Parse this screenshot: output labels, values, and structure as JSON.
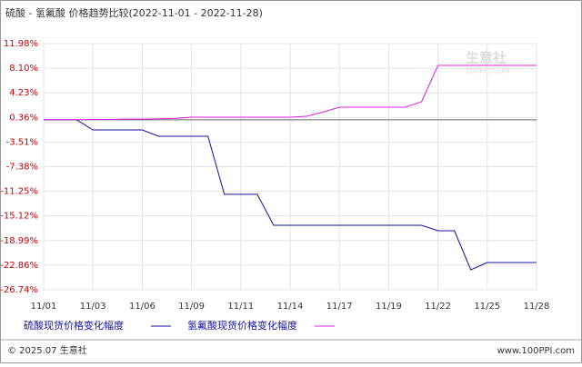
{
  "chart_data": {
    "type": "line",
    "title": "硫酸 - 氢氟酸 价格趋势比较(2022-11-01 - 2022-11-28)",
    "categories": [
      "11/01",
      null,
      null,
      "11/03",
      null,
      null,
      "11/06",
      null,
      null,
      "11/09",
      null,
      null,
      "11/11",
      null,
      null,
      "11/14",
      null,
      null,
      "11/17",
      null,
      null,
      "11/19",
      null,
      null,
      "11/22",
      null,
      null,
      "11/25",
      null,
      null,
      "11/28"
    ],
    "series": [
      {
        "name": "硫酸现货价格变化幅度",
        "color": "#1010a0",
        "values": [
          0,
          0,
          0,
          -1.59,
          -1.59,
          -1.59,
          -1.59,
          -2.59,
          -2.59,
          -2.59,
          -2.59,
          -11.73,
          -11.73,
          -11.73,
          -16.59,
          -16.59,
          -16.59,
          -16.59,
          -16.59,
          -16.59,
          -16.59,
          -16.59,
          -16.59,
          -16.59,
          -17.45,
          -17.45,
          -23.59,
          -22.45,
          -22.45,
          -22.45,
          -22.45
        ]
      },
      {
        "name": "氢氟酸现货价格变化幅度",
        "color": "#e020e0",
        "values": [
          0,
          0,
          0,
          0.05,
          0.05,
          0.1,
          0.1,
          0.15,
          0.2,
          0.41,
          0.41,
          0.41,
          0.41,
          0.41,
          0.41,
          0.41,
          0.55,
          1.2,
          1.98,
          1.98,
          1.98,
          1.98,
          1.98,
          2.84,
          8.55,
          8.55,
          8.55,
          8.55,
          8.55,
          8.55,
          8.55
        ]
      }
    ],
    "ylim": [
      -26.74,
      11.98
    ],
    "yticks": [
      {
        "value": -26.74,
        "label": "-26.74%"
      },
      {
        "value": -22.86,
        "label": "-22.86%"
      },
      {
        "value": -18.99,
        "label": "-18.99%"
      },
      {
        "value": -15.12,
        "label": "-15.12%"
      },
      {
        "value": -11.25,
        "label": "-11.25%"
      },
      {
        "value": -7.38,
        "label": "-7.38%"
      },
      {
        "value": -3.51,
        "label": "-3.51%"
      },
      {
        "value": 0.36,
        "label": "0.36%"
      },
      {
        "value": 4.23,
        "label": "4.23%"
      },
      {
        "value": 8.1,
        "label": "8.10%"
      },
      {
        "value": 11.98,
        "label": "11.98%"
      }
    ],
    "grid": true,
    "watermark": "生意社",
    "watermark_sub": "100PPI.COM",
    "footer_left": "© 2025.07 生意社",
    "footer_right": "www.100PPI.com"
  }
}
